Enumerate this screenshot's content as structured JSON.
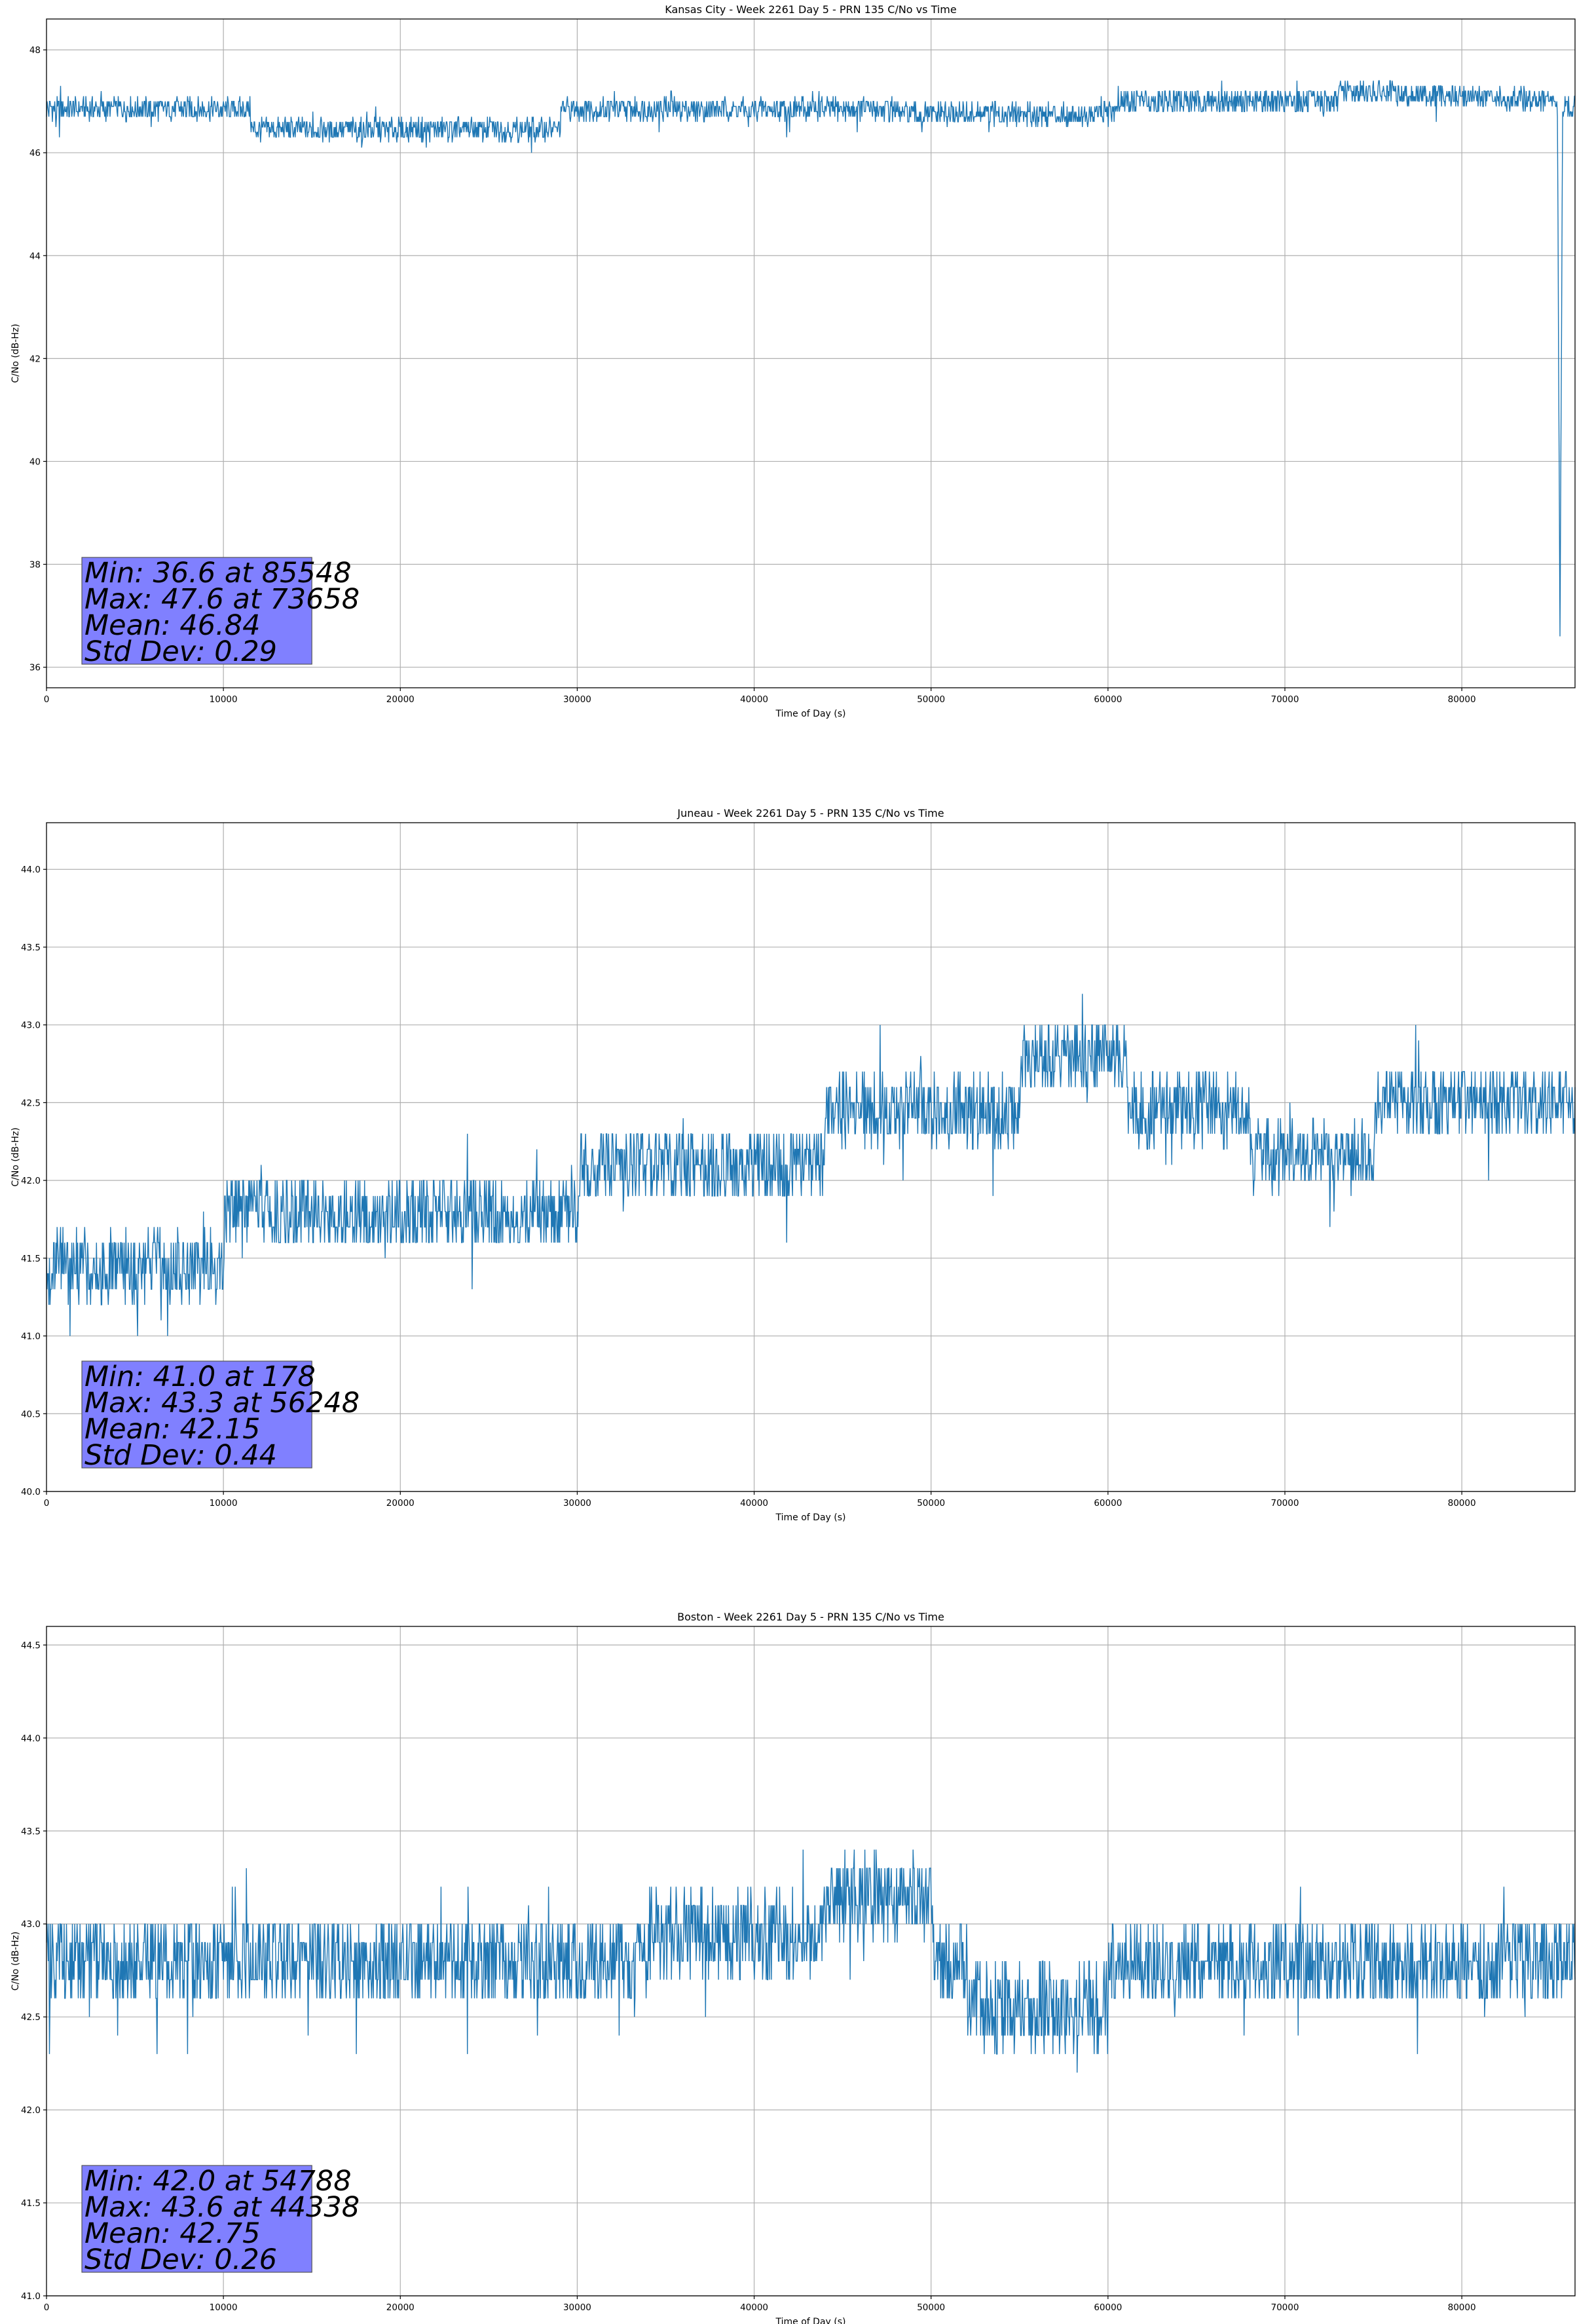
{
  "chart_data": [
    {
      "type": "line",
      "title": "Kansas City - Week 2261 Day 5 - PRN 135 C/No vs Time",
      "xlabel": "Time of Day (s)",
      "ylabel": "C/No (dB-Hz)",
      "xlim": [
        0,
        86400
      ],
      "ylim": [
        35.6,
        48.6
      ],
      "xticks": [
        0,
        10000,
        20000,
        30000,
        40000,
        50000,
        60000,
        70000,
        80000
      ],
      "yticks": [
        36,
        38,
        40,
        42,
        44,
        46,
        48
      ],
      "ytick_labels": [
        "36",
        "38",
        "40",
        "42",
        "44",
        "46",
        "48"
      ],
      "grid": true,
      "color": "#1f77b4",
      "series": [
        {
          "x": [
            0,
            11500,
            11600,
            29000,
            29100,
            48000,
            48100,
            60500,
            60600,
            73000,
            73100,
            85400,
            85548,
            85700,
            86400
          ],
          "y": [
            46.85,
            46.85,
            46.45,
            46.45,
            46.85,
            46.85,
            46.75,
            46.75,
            47.0,
            47.0,
            47.2,
            47.0,
            36.6,
            46.9,
            46.9
          ]
        }
      ],
      "stats": [
        "Min: 36.6 at 85548",
        "Max: 47.6 at 73658",
        "Mean: 46.84",
        "Std Dev: 0.29"
      ]
    },
    {
      "type": "line",
      "title": "Juneau - Week 2261 Day 5 - PRN 135 C/No vs Time",
      "xlabel": "Time of Day (s)",
      "ylabel": "C/No (dB-Hz)",
      "xlim": [
        0,
        86400
      ],
      "ylim": [
        40.0,
        44.3
      ],
      "xticks": [
        0,
        10000,
        20000,
        30000,
        40000,
        50000,
        60000,
        70000,
        80000
      ],
      "yticks": [
        40.0,
        40.5,
        41.0,
        41.5,
        42.0,
        42.5,
        43.0,
        43.5,
        44.0
      ],
      "ytick_labels": [
        "40.0",
        "40.5",
        "41.0",
        "41.5",
        "42.0",
        "42.5",
        "43.0",
        "43.5",
        "44.0"
      ],
      "grid": true,
      "color": "#1f77b4",
      "series": [
        {
          "x": [
            0,
            10000,
            10100,
            30000,
            30100,
            44000,
            44100,
            55000,
            55100,
            61000,
            61100,
            68000,
            68100,
            75000,
            75100,
            86400
          ],
          "y": [
            41.45,
            41.45,
            41.8,
            41.8,
            42.1,
            42.1,
            42.45,
            42.45,
            42.8,
            42.8,
            42.45,
            42.45,
            42.15,
            42.15,
            42.5,
            42.5
          ]
        }
      ],
      "stats": [
        "Min: 41.0 at 178",
        "Max: 43.3 at 56248",
        "Mean: 42.15",
        "Std Dev: 0.44"
      ]
    },
    {
      "type": "line",
      "title": "Boston - Week 2261 Day 5 - PRN 135 C/No vs Time",
      "xlabel": "Time of Day (s)",
      "ylabel": "C/No (dB-Hz)",
      "xlim": [
        0,
        86400
      ],
      "ylim": [
        41.0,
        44.6
      ],
      "xticks": [
        0,
        10000,
        20000,
        30000,
        40000,
        50000,
        60000,
        70000,
        80000
      ],
      "yticks": [
        41.0,
        41.5,
        42.0,
        42.5,
        43.0,
        43.5,
        44.0,
        44.5
      ],
      "ytick_labels": [
        "41.0",
        "41.5",
        "42.0",
        "42.5",
        "43.0",
        "43.5",
        "44.0",
        "44.5"
      ],
      "grid": true,
      "color": "#1f77b4",
      "series": [
        {
          "x": [
            0,
            34000,
            34100,
            44000,
            44100,
            50000,
            50100,
            52000,
            52100,
            60000,
            60100,
            86400
          ],
          "y": [
            42.8,
            42.8,
            42.95,
            42.95,
            43.15,
            43.15,
            42.8,
            42.8,
            42.55,
            42.55,
            42.8,
            42.8
          ]
        }
      ],
      "stats": [
        "Min: 42.0 at 54788",
        "Max: 43.6 at 44338",
        "Mean: 42.75",
        "Std Dev: 0.26"
      ]
    }
  ]
}
